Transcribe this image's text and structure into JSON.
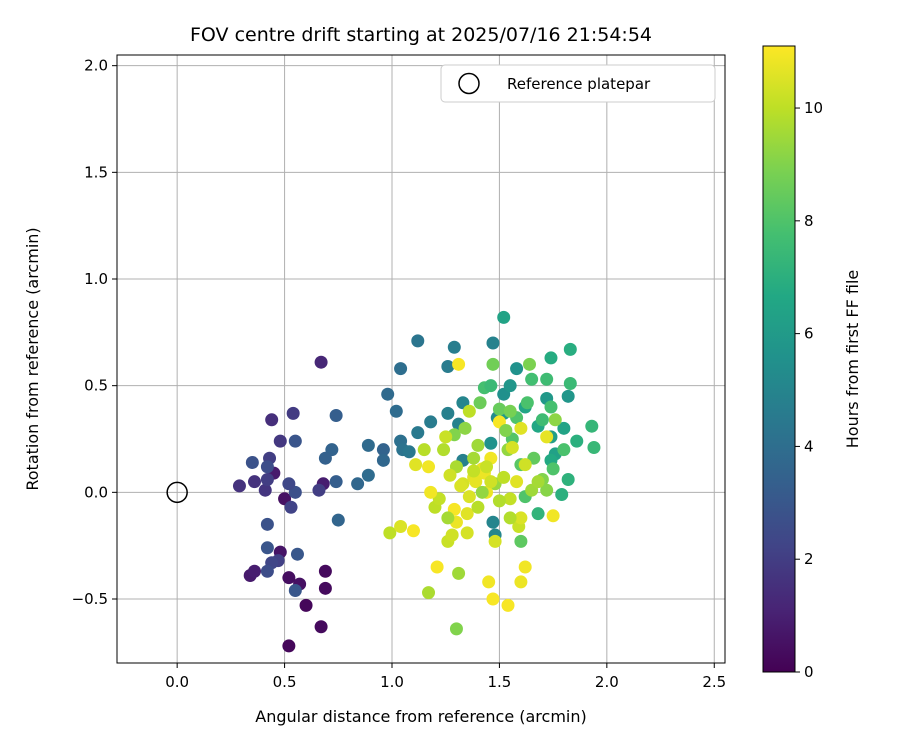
{
  "chart_data": {
    "type": "scatter",
    "title": "FOV centre drift starting at 2025/07/16 21:54:54",
    "xlabel": "Angular distance from reference (arcmin)",
    "ylabel": "Rotation from reference (arcmin)",
    "xlim": [
      -0.28,
      2.55
    ],
    "ylim": [
      -0.8,
      2.05
    ],
    "xticks": [
      0.0,
      0.5,
      1.0,
      1.5,
      2.0,
      2.5
    ],
    "xtick_labels": [
      "0.0",
      "0.5",
      "1.0",
      "1.5",
      "2.0",
      "2.5"
    ],
    "yticks": [
      -0.5,
      0.0,
      0.5,
      1.0,
      1.5,
      2.0
    ],
    "ytick_labels": [
      "−0.5",
      "0.0",
      "0.5",
      "1.0",
      "1.5",
      "2.0"
    ],
    "grid": true,
    "legend": {
      "position": "top-right",
      "label": "Reference platepar"
    },
    "reference": {
      "x": 0.0,
      "y": 0.0
    },
    "colorbar": {
      "label": "Hours from first FF file",
      "range": [
        0,
        11.1
      ],
      "ticks": [
        0,
        2,
        4,
        6,
        8,
        10
      ],
      "tick_labels": [
        "0",
        "2",
        "4",
        "6",
        "8",
        "10"
      ],
      "colormap": "viridis"
    },
    "points": [
      {
        "x": 0.52,
        "y": -0.72,
        "h": 0.2
      },
      {
        "x": 0.67,
        "y": -0.63,
        "h": 0.3
      },
      {
        "x": 0.6,
        "y": -0.53,
        "h": 0.2
      },
      {
        "x": 0.69,
        "y": -0.45,
        "h": 0.3
      },
      {
        "x": 0.57,
        "y": -0.43,
        "h": 0.5
      },
      {
        "x": 0.52,
        "y": -0.4,
        "h": 0.4
      },
      {
        "x": 0.69,
        "y": -0.37,
        "h": 0.3
      },
      {
        "x": 0.34,
        "y": -0.39,
        "h": 0.8
      },
      {
        "x": 0.36,
        "y": -0.37,
        "h": 0.9
      },
      {
        "x": 0.48,
        "y": -0.28,
        "h": 0.6
      },
      {
        "x": 0.5,
        "y": -0.03,
        "h": 0.5
      },
      {
        "x": 0.45,
        "y": 0.09,
        "h": 0.8
      },
      {
        "x": 0.68,
        "y": 0.04,
        "h": 0.9
      },
      {
        "x": 0.67,
        "y": 0.61,
        "h": 1.2
      },
      {
        "x": 0.29,
        "y": 0.03,
        "h": 1.6
      },
      {
        "x": 0.36,
        "y": 0.05,
        "h": 1.6
      },
      {
        "x": 0.41,
        "y": 0.01,
        "h": 1.7
      },
      {
        "x": 0.44,
        "y": 0.34,
        "h": 1.5
      },
      {
        "x": 0.48,
        "y": 0.24,
        "h": 1.8
      },
      {
        "x": 0.54,
        "y": 0.37,
        "h": 1.9
      },
      {
        "x": 0.43,
        "y": 0.16,
        "h": 2.0
      },
      {
        "x": 0.42,
        "y": 0.06,
        "h": 2.0
      },
      {
        "x": 0.53,
        "y": -0.07,
        "h": 2.2
      },
      {
        "x": 0.47,
        "y": -0.32,
        "h": 2.1
      },
      {
        "x": 0.44,
        "y": -0.33,
        "h": 2.3
      },
      {
        "x": 0.42,
        "y": -0.37,
        "h": 2.6
      },
      {
        "x": 0.55,
        "y": -0.46,
        "h": 3.0
      },
      {
        "x": 0.42,
        "y": -0.26,
        "h": 2.9
      },
      {
        "x": 0.42,
        "y": -0.15,
        "h": 2.8
      },
      {
        "x": 0.56,
        "y": -0.29,
        "h": 3.0
      },
      {
        "x": 0.55,
        "y": 0.0,
        "h": 2.7
      },
      {
        "x": 0.52,
        "y": 0.04,
        "h": 2.4
      },
      {
        "x": 0.35,
        "y": 0.14,
        "h": 2.8
      },
      {
        "x": 0.42,
        "y": 0.12,
        "h": 2.6
      },
      {
        "x": 0.55,
        "y": 0.24,
        "h": 2.9
      },
      {
        "x": 0.66,
        "y": 0.01,
        "h": 2.0
      },
      {
        "x": 0.74,
        "y": 0.36,
        "h": 3.3
      },
      {
        "x": 0.72,
        "y": 0.2,
        "h": 3.5
      },
      {
        "x": 0.69,
        "y": 0.16,
        "h": 3.4
      },
      {
        "x": 0.74,
        "y": 0.05,
        "h": 3.3
      },
      {
        "x": 0.75,
        "y": -0.13,
        "h": 3.6
      },
      {
        "x": 0.84,
        "y": 0.04,
        "h": 3.7
      },
      {
        "x": 0.89,
        "y": 0.22,
        "h": 3.8
      },
      {
        "x": 0.89,
        "y": 0.08,
        "h": 3.9
      },
      {
        "x": 0.96,
        "y": 0.2,
        "h": 3.5
      },
      {
        "x": 0.96,
        "y": 0.15,
        "h": 3.7
      },
      {
        "x": 0.98,
        "y": 0.46,
        "h": 3.8
      },
      {
        "x": 1.02,
        "y": 0.38,
        "h": 3.9
      },
      {
        "x": 1.04,
        "y": 0.58,
        "h": 4.0
      },
      {
        "x": 1.04,
        "y": 0.24,
        "h": 4.1
      },
      {
        "x": 1.05,
        "y": 0.2,
        "h": 4.2
      },
      {
        "x": 1.08,
        "y": 0.19,
        "h": 4.4
      },
      {
        "x": 1.12,
        "y": 0.71,
        "h": 4.3
      },
      {
        "x": 1.12,
        "y": 0.28,
        "h": 4.5
      },
      {
        "x": 1.18,
        "y": 0.33,
        "h": 4.6
      },
      {
        "x": 1.26,
        "y": 0.59,
        "h": 4.6
      },
      {
        "x": 1.29,
        "y": 0.68,
        "h": 4.7
      },
      {
        "x": 1.26,
        "y": 0.37,
        "h": 4.8
      },
      {
        "x": 1.31,
        "y": 0.32,
        "h": 4.9
      },
      {
        "x": 1.33,
        "y": 0.42,
        "h": 5.0
      },
      {
        "x": 1.33,
        "y": 0.15,
        "h": 4.8
      },
      {
        "x": 1.47,
        "y": 0.7,
        "h": 4.9
      },
      {
        "x": 1.47,
        "y": -0.14,
        "h": 5.0
      },
      {
        "x": 1.48,
        "y": -0.2,
        "h": 5.1
      },
      {
        "x": 1.49,
        "y": 0.35,
        "h": 5.3
      },
      {
        "x": 1.52,
        "y": 0.46,
        "h": 5.5
      },
      {
        "x": 1.46,
        "y": 0.23,
        "h": 5.6
      },
      {
        "x": 1.55,
        "y": 0.5,
        "h": 5.8
      },
      {
        "x": 1.58,
        "y": 0.58,
        "h": 5.6
      },
      {
        "x": 1.52,
        "y": 0.37,
        "h": 6.0
      },
      {
        "x": 1.52,
        "y": 0.82,
        "h": 6.4
      },
      {
        "x": 1.62,
        "y": 0.4,
        "h": 6.5
      },
      {
        "x": 1.68,
        "y": 0.31,
        "h": 6.6
      },
      {
        "x": 1.72,
        "y": 0.44,
        "h": 5.9
      },
      {
        "x": 1.74,
        "y": 0.26,
        "h": 6.2
      },
      {
        "x": 1.76,
        "y": 0.18,
        "h": 6.3
      },
      {
        "x": 1.8,
        "y": 0.3,
        "h": 6.4
      },
      {
        "x": 1.74,
        "y": 0.15,
        "h": 6.7
      },
      {
        "x": 1.74,
        "y": 0.63,
        "h": 6.8
      },
      {
        "x": 1.82,
        "y": 0.45,
        "h": 5.8
      },
      {
        "x": 1.83,
        "y": 0.67,
        "h": 6.9
      },
      {
        "x": 1.86,
        "y": 0.24,
        "h": 7.0
      },
      {
        "x": 1.82,
        "y": 0.06,
        "h": 7.1
      },
      {
        "x": 1.79,
        "y": -0.01,
        "h": 7.0
      },
      {
        "x": 1.68,
        "y": -0.1,
        "h": 7.2
      },
      {
        "x": 1.93,
        "y": 0.31,
        "h": 7.3
      },
      {
        "x": 1.94,
        "y": 0.21,
        "h": 7.4
      },
      {
        "x": 1.83,
        "y": 0.51,
        "h": 7.5
      },
      {
        "x": 1.72,
        "y": 0.53,
        "h": 7.6
      },
      {
        "x": 1.65,
        "y": 0.53,
        "h": 7.7
      },
      {
        "x": 1.7,
        "y": 0.34,
        "h": 7.6
      },
      {
        "x": 1.74,
        "y": 0.4,
        "h": 7.8
      },
      {
        "x": 1.8,
        "y": 0.2,
        "h": 7.9
      },
      {
        "x": 1.75,
        "y": 0.11,
        "h": 8.0
      },
      {
        "x": 1.63,
        "y": 0.42,
        "h": 7.9
      },
      {
        "x": 1.58,
        "y": 0.35,
        "h": 8.0
      },
      {
        "x": 1.56,
        "y": 0.25,
        "h": 8.1
      },
      {
        "x": 1.6,
        "y": 0.13,
        "h": 8.2
      },
      {
        "x": 1.62,
        "y": -0.02,
        "h": 8.0
      },
      {
        "x": 1.6,
        "y": -0.23,
        "h": 8.3
      },
      {
        "x": 1.66,
        "y": 0.16,
        "h": 8.4
      },
      {
        "x": 1.43,
        "y": 0.49,
        "h": 7.8
      },
      {
        "x": 1.46,
        "y": 0.5,
        "h": 7.5
      },
      {
        "x": 1.5,
        "y": 0.39,
        "h": 8.5
      },
      {
        "x": 1.41,
        "y": 0.42,
        "h": 8.6
      },
      {
        "x": 1.47,
        "y": 0.6,
        "h": 8.7
      },
      {
        "x": 1.55,
        "y": 0.38,
        "h": 8.8
      },
      {
        "x": 1.64,
        "y": 0.6,
        "h": 8.9
      },
      {
        "x": 1.7,
        "y": 0.06,
        "h": 9.0
      },
      {
        "x": 1.72,
        "y": 0.01,
        "h": 9.1
      },
      {
        "x": 1.76,
        "y": 0.34,
        "h": 9.2
      },
      {
        "x": 1.54,
        "y": 0.2,
        "h": 9.3
      },
      {
        "x": 1.48,
        "y": 0.04,
        "h": 9.4
      },
      {
        "x": 1.4,
        "y": 0.22,
        "h": 9.5
      },
      {
        "x": 1.38,
        "y": 0.16,
        "h": 9.6
      },
      {
        "x": 1.29,
        "y": 0.27,
        "h": 9.0
      },
      {
        "x": 1.3,
        "y": 0.12,
        "h": 9.7
      },
      {
        "x": 1.24,
        "y": 0.2,
        "h": 9.8
      },
      {
        "x": 1.15,
        "y": 0.2,
        "h": 9.9
      },
      {
        "x": 1.2,
        "y": -0.07,
        "h": 10.0
      },
      {
        "x": 1.22,
        "y": -0.03,
        "h": 10.1
      },
      {
        "x": 1.26,
        "y": -0.23,
        "h": 10.2
      },
      {
        "x": 1.28,
        "y": -0.2,
        "h": 10.3
      },
      {
        "x": 1.35,
        "y": -0.19,
        "h": 10.4
      },
      {
        "x": 1.31,
        "y": -0.38,
        "h": 9.5
      },
      {
        "x": 1.17,
        "y": -0.47,
        "h": 9.7
      },
      {
        "x": 1.3,
        "y": -0.64,
        "h": 9.0
      },
      {
        "x": 0.99,
        "y": -0.19,
        "h": 10.0
      },
      {
        "x": 1.04,
        "y": -0.16,
        "h": 10.5
      },
      {
        "x": 1.1,
        "y": -0.18,
        "h": 11.0
      },
      {
        "x": 1.11,
        "y": 0.13,
        "h": 10.6
      },
      {
        "x": 1.17,
        "y": 0.12,
        "h": 10.9
      },
      {
        "x": 1.21,
        "y": -0.35,
        "h": 11.0
      },
      {
        "x": 1.31,
        "y": 0.6,
        "h": 11.0
      },
      {
        "x": 1.36,
        "y": 0.38,
        "h": 10.0
      },
      {
        "x": 1.25,
        "y": 0.26,
        "h": 10.2
      },
      {
        "x": 1.27,
        "y": 0.08,
        "h": 10.3
      },
      {
        "x": 1.33,
        "y": 0.04,
        "h": 10.4
      },
      {
        "x": 1.36,
        "y": -0.02,
        "h": 10.5
      },
      {
        "x": 1.38,
        "y": 0.07,
        "h": 10.6
      },
      {
        "x": 1.42,
        "y": 0.11,
        "h": 10.7
      },
      {
        "x": 1.44,
        "y": 0.0,
        "h": 10.8
      },
      {
        "x": 1.45,
        "y": -0.42,
        "h": 10.9
      },
      {
        "x": 1.47,
        "y": -0.5,
        "h": 11.0
      },
      {
        "x": 1.54,
        "y": -0.53,
        "h": 11.0
      },
      {
        "x": 1.6,
        "y": -0.42,
        "h": 10.8
      },
      {
        "x": 1.62,
        "y": -0.35,
        "h": 10.9
      },
      {
        "x": 1.59,
        "y": -0.16,
        "h": 10.2
      },
      {
        "x": 1.6,
        "y": -0.12,
        "h": 10.5
      },
      {
        "x": 1.55,
        "y": -0.12,
        "h": 9.8
      },
      {
        "x": 1.55,
        "y": -0.03,
        "h": 10.1
      },
      {
        "x": 1.58,
        "y": 0.05,
        "h": 10.6
      },
      {
        "x": 1.62,
        "y": 0.13,
        "h": 10.3
      },
      {
        "x": 1.65,
        "y": 0.01,
        "h": 9.5
      },
      {
        "x": 1.68,
        "y": 0.05,
        "h": 9.6
      },
      {
        "x": 1.72,
        "y": 0.26,
        "h": 10.7
      },
      {
        "x": 1.75,
        "y": -0.11,
        "h": 10.9
      },
      {
        "x": 1.48,
        "y": -0.23,
        "h": 10.4
      },
      {
        "x": 1.5,
        "y": 0.33,
        "h": 11.0
      },
      {
        "x": 1.46,
        "y": 0.16,
        "h": 10.9
      },
      {
        "x": 1.43,
        "y": 0.09,
        "h": 10.8
      },
      {
        "x": 1.39,
        "y": 0.05,
        "h": 10.7
      },
      {
        "x": 1.35,
        "y": -0.1,
        "h": 10.6
      },
      {
        "x": 1.3,
        "y": -0.14,
        "h": 10.8
      },
      {
        "x": 1.29,
        "y": -0.08,
        "h": 11.0
      },
      {
        "x": 1.32,
        "y": 0.03,
        "h": 10.5
      },
      {
        "x": 1.4,
        "y": -0.07,
        "h": 9.9
      },
      {
        "x": 1.44,
        "y": 0.12,
        "h": 10.2
      },
      {
        "x": 1.52,
        "y": 0.07,
        "h": 10.0
      },
      {
        "x": 1.56,
        "y": 0.21,
        "h": 10.4
      },
      {
        "x": 1.6,
        "y": 0.3,
        "h": 10.6
      },
      {
        "x": 1.5,
        "y": -0.04,
        "h": 9.8
      },
      {
        "x": 1.18,
        "y": 0.0,
        "h": 10.9
      },
      {
        "x": 1.34,
        "y": 0.3,
        "h": 9.2
      },
      {
        "x": 1.53,
        "y": 0.29,
        "h": 9.0
      },
      {
        "x": 1.42,
        "y": 0.0,
        "h": 9.3
      },
      {
        "x": 1.26,
        "y": -0.12,
        "h": 9.6
      },
      {
        "x": 1.38,
        "y": 0.1,
        "h": 10.1
      },
      {
        "x": 1.46,
        "y": 0.05,
        "h": 10.3
      }
    ]
  }
}
